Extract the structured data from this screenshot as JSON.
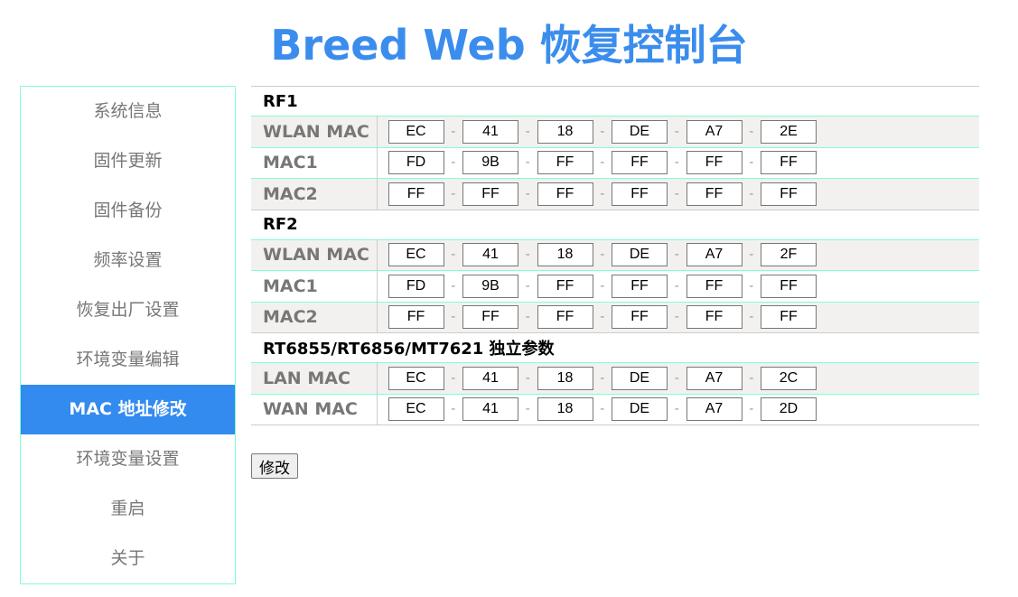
{
  "header": {
    "title": "Breed Web 恢复控制台"
  },
  "sidebar": {
    "items": [
      {
        "label": "系统信息",
        "active": false
      },
      {
        "label": "固件更新",
        "active": false
      },
      {
        "label": "固件备份",
        "active": false
      },
      {
        "label": "频率设置",
        "active": false
      },
      {
        "label": "恢复出厂设置",
        "active": false
      },
      {
        "label": "环境变量编辑",
        "active": false
      },
      {
        "label": "MAC 地址修改",
        "active": true
      },
      {
        "label": "环境变量设置",
        "active": false
      },
      {
        "label": "重启",
        "active": false
      },
      {
        "label": "关于",
        "active": false
      }
    ]
  },
  "separator": "-",
  "sections": [
    {
      "title": "RF1",
      "rows": [
        {
          "label": "WLAN MAC",
          "octets": [
            "EC",
            "41",
            "18",
            "DE",
            "A7",
            "2E"
          ]
        },
        {
          "label": "MAC1",
          "octets": [
            "FD",
            "9B",
            "FF",
            "FF",
            "FF",
            "FF"
          ]
        },
        {
          "label": "MAC2",
          "octets": [
            "FF",
            "FF",
            "FF",
            "FF",
            "FF",
            "FF"
          ]
        }
      ]
    },
    {
      "title": "RF2",
      "rows": [
        {
          "label": "WLAN MAC",
          "octets": [
            "EC",
            "41",
            "18",
            "DE",
            "A7",
            "2F"
          ]
        },
        {
          "label": "MAC1",
          "octets": [
            "FD",
            "9B",
            "FF",
            "FF",
            "FF",
            "FF"
          ]
        },
        {
          "label": "MAC2",
          "octets": [
            "FF",
            "FF",
            "FF",
            "FF",
            "FF",
            "FF"
          ]
        }
      ]
    },
    {
      "title": "RT6855/RT6856/MT7621 独立参数",
      "rows": [
        {
          "label": "LAN MAC",
          "octets": [
            "EC",
            "41",
            "18",
            "DE",
            "A7",
            "2C"
          ]
        },
        {
          "label": "WAN MAC",
          "octets": [
            "EC",
            "41",
            "18",
            "DE",
            "A7",
            "2D"
          ]
        }
      ]
    }
  ],
  "submit_label": "修改",
  "colors": {
    "accent": "#338aef",
    "title": "#3b8ded",
    "border": "#7fffd4"
  }
}
